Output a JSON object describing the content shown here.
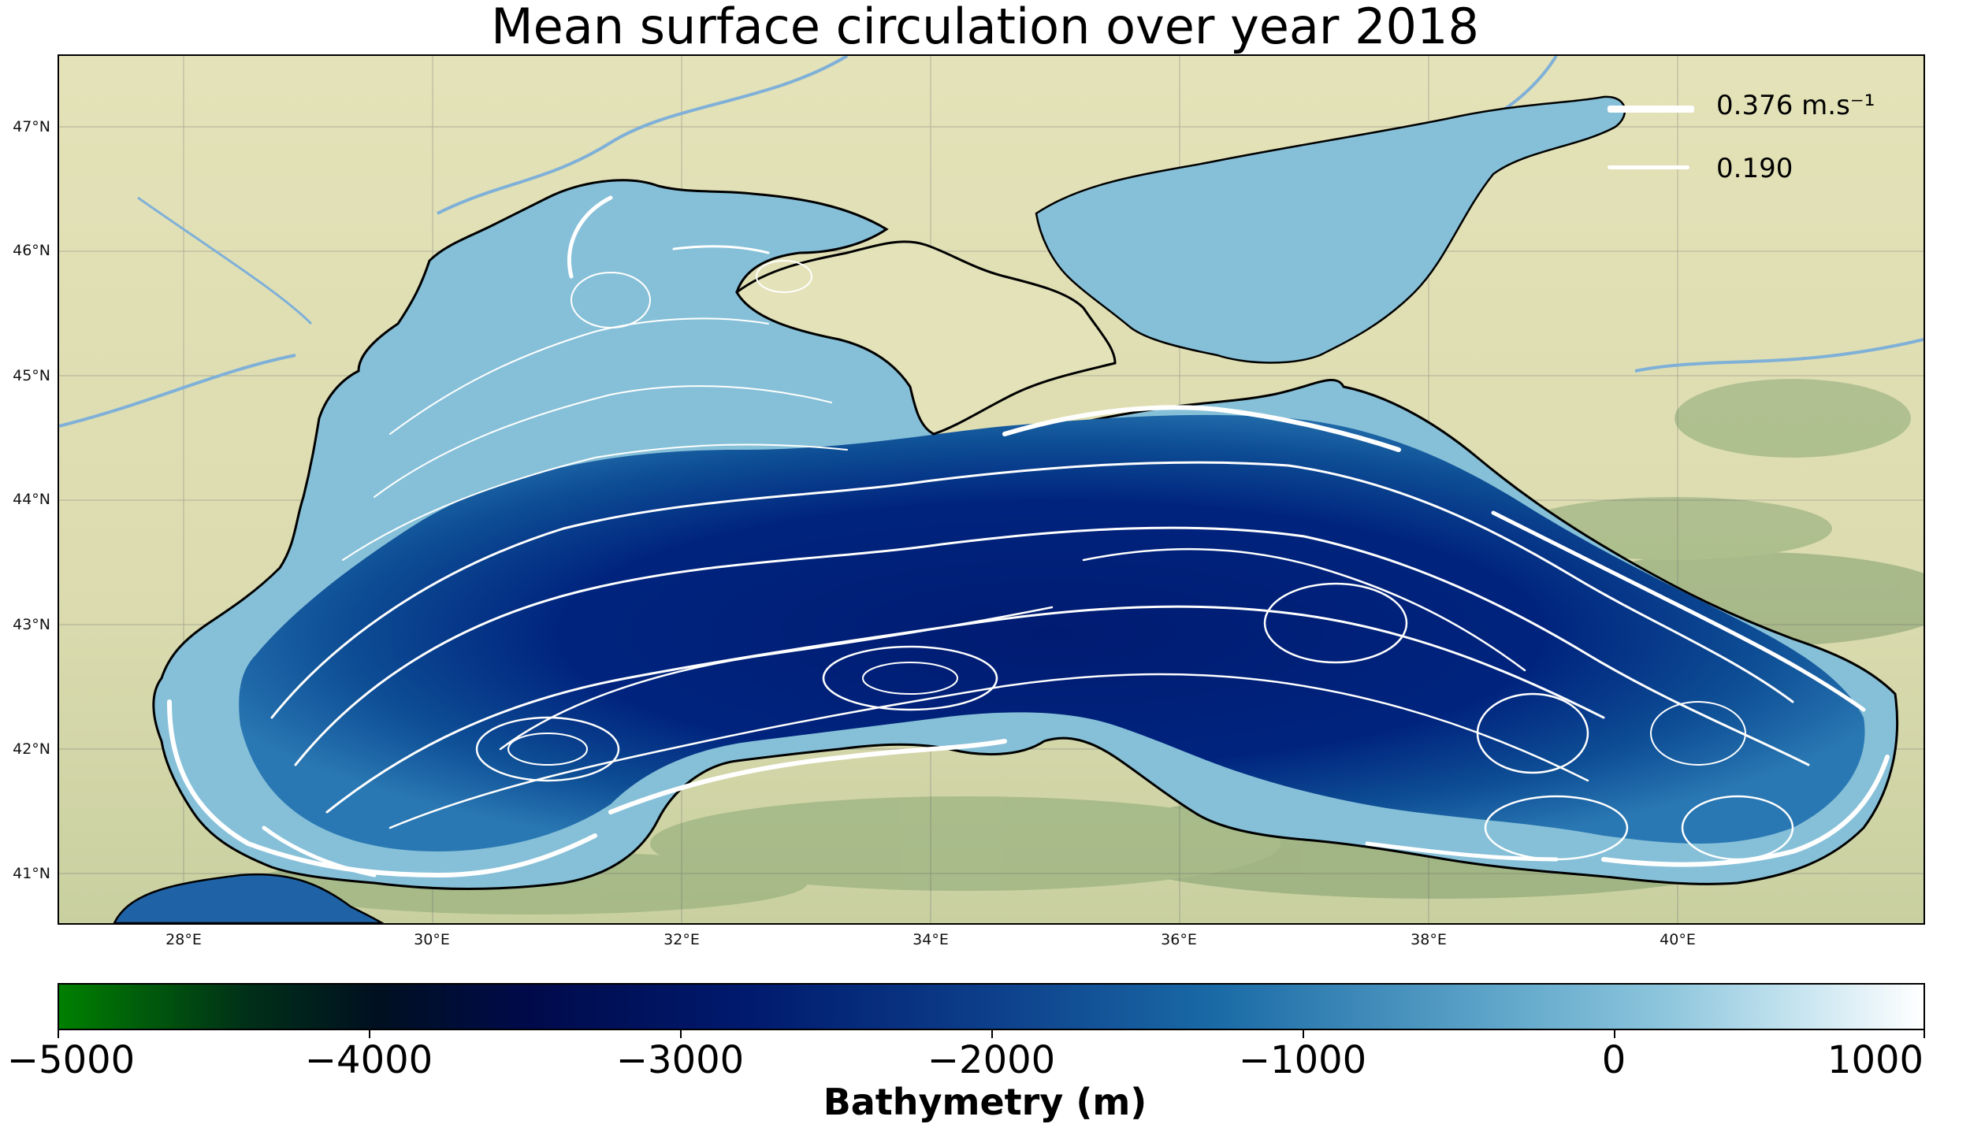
{
  "title": "Mean surface circulation over year 2018",
  "map": {
    "lat_ticks": [
      "47°N",
      "46°N",
      "45°N",
      "44°N",
      "43°N",
      "42°N",
      "41°N"
    ],
    "lon_ticks": [
      "28°E",
      "30°E",
      "32°E",
      "34°E",
      "36°E",
      "38°E",
      "40°E"
    ],
    "colors": {
      "land": "#e3e2b9",
      "land_mountain": "#8fa878",
      "shelf_water": "#86c0d8",
      "deep_water": "#001a6e",
      "mid_water": "#1a5fa3",
      "streamline": "#ffffff",
      "coast": "#000000",
      "river": "#7fb0d8"
    }
  },
  "legend": {
    "items": [
      {
        "label": "0.376  m.s⁻¹",
        "speed": 0.376
      },
      {
        "label": "0.190",
        "speed": 0.19
      }
    ]
  },
  "colorbar": {
    "title": "Bathymetry (m)",
    "min": -5000,
    "max": 1000,
    "ticks": [
      "−5000",
      "−4000",
      "−3000",
      "−2000",
      "−1000",
      "0",
      "1000"
    ],
    "colors": [
      "#008000",
      "#000a4a",
      "#001a6e",
      "#1a6aa6",
      "#8cc5dc",
      "#ffffff"
    ]
  }
}
